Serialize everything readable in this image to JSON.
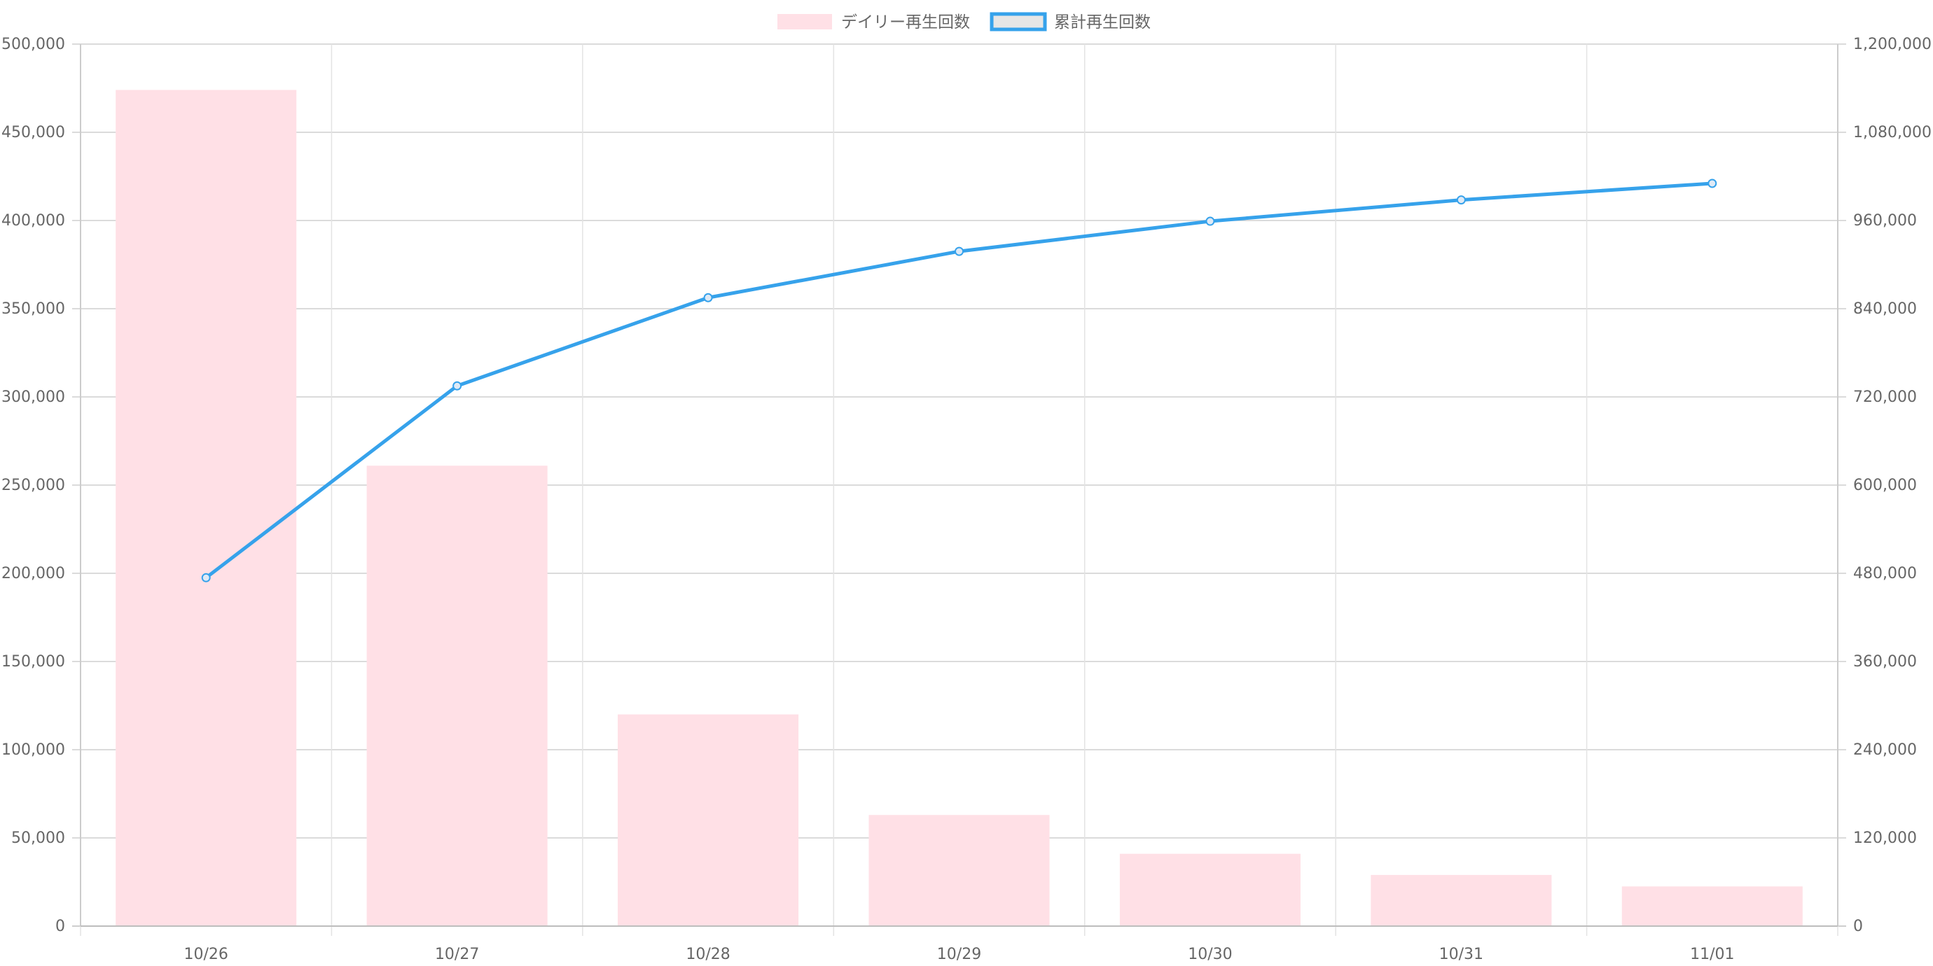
{
  "chart_data": {
    "type": "bar",
    "categories": [
      "10/26",
      "10/27",
      "10/28",
      "10/29",
      "10/30",
      "10/31",
      "11/01"
    ],
    "series": [
      {
        "name": "デイリー再生回数",
        "type": "bar",
        "axis": "left",
        "values": [
          474000,
          261000,
          120000,
          63000,
          41000,
          29000,
          22500
        ],
        "fill_color": "#ffe0e6",
        "border_color": "#ffe0e6"
      },
      {
        "name": "累計再生回数",
        "type": "line",
        "axis": "right",
        "values": [
          474000,
          735000,
          855000,
          918000,
          959000,
          988000,
          1010500
        ],
        "line_color": "#36a2eb",
        "legend_fill_color": "#e6e6e6"
      }
    ],
    "y_left": {
      "range": [
        0,
        500000
      ],
      "ticks": [
        0,
        50000,
        100000,
        150000,
        200000,
        250000,
        300000,
        350000,
        400000,
        450000,
        500000
      ],
      "tick_labels": [
        "0",
        "50,000",
        "100,000",
        "150,000",
        "200,000",
        "250,000",
        "300,000",
        "350,000",
        "400,000",
        "450,000",
        "500,000"
      ]
    },
    "y_right": {
      "range": [
        0,
        1200000
      ],
      "ticks": [
        0,
        120000,
        240000,
        360000,
        480000,
        600000,
        720000,
        840000,
        960000,
        1080000,
        1200000
      ],
      "tick_labels": [
        "0",
        "120,000",
        "240,000",
        "360,000",
        "480,000",
        "600,000",
        "720,000",
        "840,000",
        "960,000",
        "1,080,000",
        "1,200,000"
      ]
    },
    "title": "",
    "xlabel": "",
    "ylabel": "",
    "grid": true,
    "legend_position": "top-center",
    "grid_color": "#e0e0e0",
    "axis_color": "#cccccc",
    "text_color": "#666666"
  }
}
